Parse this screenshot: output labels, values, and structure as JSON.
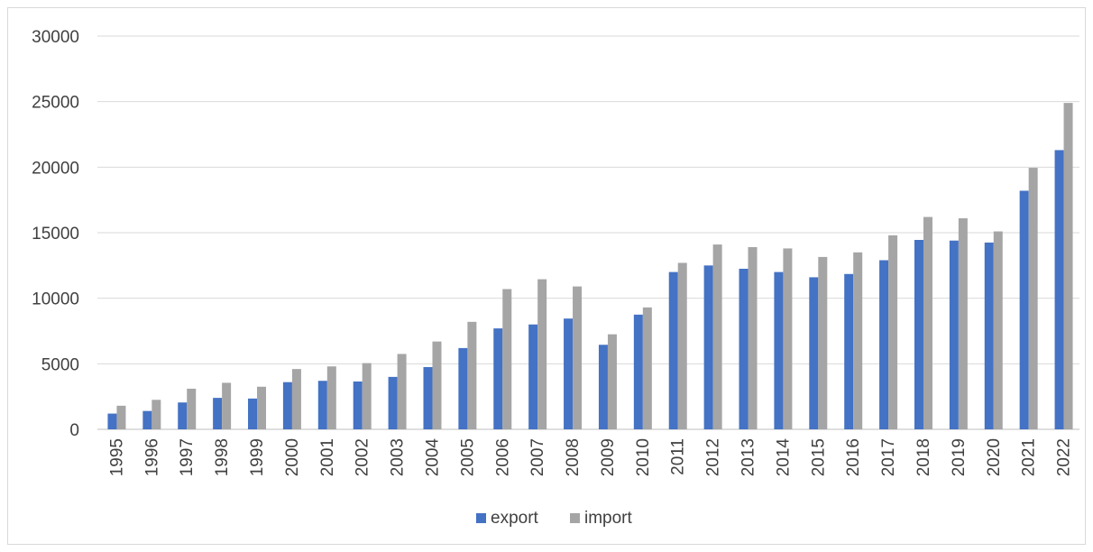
{
  "chart_data": {
    "type": "bar",
    "categories": [
      "1995",
      "1996",
      "1997",
      "1998",
      "1999",
      "2000",
      "2001",
      "2002",
      "2003",
      "2004",
      "2005",
      "2006",
      "2007",
      "2008",
      "2009",
      "2010",
      "2011",
      "2012",
      "2013",
      "2014",
      "2015",
      "2016",
      "2017",
      "2018",
      "2019",
      "2020",
      "2021",
      "2022"
    ],
    "series": [
      {
        "name": "export",
        "color": "#4472c4",
        "values": [
          1200,
          1400,
          2050,
          2400,
          2350,
          3600,
          3700,
          3650,
          4000,
          4750,
          6200,
          7700,
          8000,
          8450,
          6450,
          8750,
          12000,
          12500,
          12250,
          12000,
          11600,
          11850,
          12900,
          14450,
          14400,
          14250,
          18200,
          21300
        ]
      },
      {
        "name": "import",
        "color": "#a5a5a5",
        "values": [
          1800,
          2250,
          3100,
          3550,
          3250,
          4600,
          4800,
          5050,
          5750,
          6700,
          8200,
          10700,
          11450,
          10900,
          7250,
          9300,
          12700,
          14100,
          13900,
          13800,
          13150,
          13500,
          14800,
          16200,
          16100,
          15100,
          19950,
          24900
        ]
      }
    ],
    "yticks": [
      "0",
      "5000",
      "10000",
      "15000",
      "20000",
      "25000",
      "30000"
    ],
    "ylim": [
      0,
      30000
    ],
    "grid": true,
    "legend": "bottom-center",
    "title": "",
    "xlabel": "",
    "ylabel": ""
  }
}
